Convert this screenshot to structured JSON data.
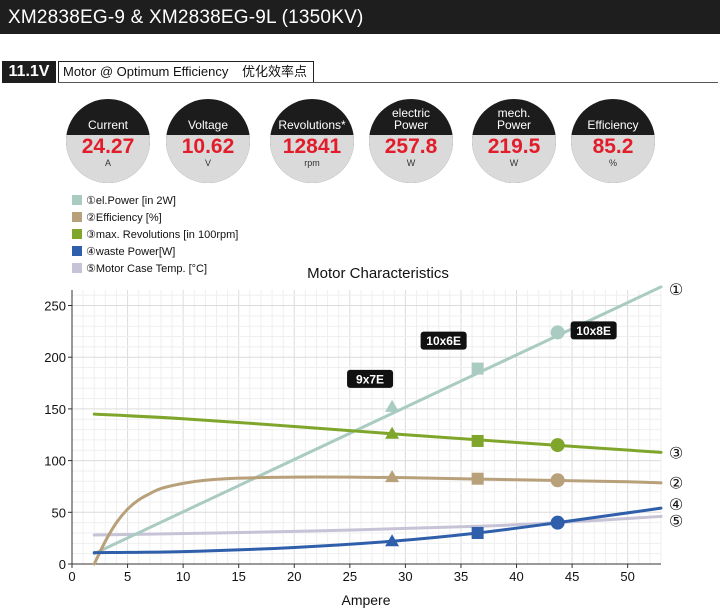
{
  "header": {
    "title": "XM2838EG-9 & XM2838EG-9L (1350KV)"
  },
  "condition": {
    "voltage": "11.1V",
    "label": "Motor @ Optimum Efficiency",
    "label_cn": "优化效率点"
  },
  "gauges": [
    {
      "label": "Current",
      "value": "24.27",
      "unit": "A"
    },
    {
      "label": "Voltage",
      "value": "10.62",
      "unit": "V"
    },
    {
      "label": "Revolutions*",
      "value": "12841",
      "unit": "rpm"
    },
    {
      "label": "electric Power",
      "value": "257.8",
      "unit": "W"
    },
    {
      "label": "mech. Power",
      "value": "219.5",
      "unit": "W"
    },
    {
      "label": "Efficiency",
      "value": "85.2",
      "unit": "%"
    }
  ],
  "legend": [
    {
      "marker": "①",
      "text": "el.Power [in 2W]",
      "color": "#a9cbc2"
    },
    {
      "marker": "②",
      "text": "Efficiency [%]",
      "color": "#b7a07a"
    },
    {
      "marker": "③",
      "text": "max. Revolutions [in 100rpm]",
      "color": "#7fa62b"
    },
    {
      "marker": "④",
      "text": "waste Power[W]",
      "color": "#2f5fab"
    },
    {
      "marker": "⑤",
      "text": "Motor Case Temp. [°C]",
      "color": "#c7c3d6"
    }
  ],
  "chart_data": {
    "type": "line",
    "title": "Motor Characteristics",
    "xlabel": "Ampere",
    "ylabel": "",
    "xlim": [
      0,
      53
    ],
    "ylim": [
      0,
      265
    ],
    "xticks": [
      0,
      5,
      10,
      15,
      20,
      25,
      30,
      35,
      40,
      45,
      50
    ],
    "yticks": [
      0,
      50,
      100,
      150,
      200,
      250
    ],
    "grid": true,
    "legend_position": "top-left",
    "series": [
      {
        "name": "el.Power [in 2W]",
        "end_label": "①",
        "color": "#a9cbc2",
        "x": [
          2,
          53
        ],
        "y": [
          10,
          268
        ]
      },
      {
        "name": "Efficiency [%]",
        "end_label": "②",
        "color": "#b7a07a",
        "x": [
          2,
          3,
          4,
          5,
          6,
          7,
          8,
          10,
          12,
          15,
          20,
          25,
          30,
          35,
          40,
          45,
          50,
          53
        ],
        "y": [
          0,
          22,
          40,
          53,
          62,
          68,
          73,
          78,
          81,
          83,
          84,
          84,
          83.5,
          82.5,
          81.5,
          80.5,
          79.5,
          78.5
        ]
      },
      {
        "name": "max. Revolutions [in 100rpm]",
        "end_label": "③",
        "color": "#7fa62b",
        "x": [
          2,
          10,
          20,
          30,
          40,
          53
        ],
        "y": [
          145,
          140.5,
          133,
          125,
          117.5,
          108
        ]
      },
      {
        "name": "waste Power[W]",
        "end_label": "④",
        "color": "#2f5fab",
        "x": [
          2,
          10,
          20,
          28.8,
          36.5,
          43.7,
          53
        ],
        "y": [
          11,
          12,
          16,
          22,
          30,
          40,
          54
        ]
      },
      {
        "name": "Motor Case Temp. [°C]",
        "end_label": "⑤",
        "color": "#c7c3d6",
        "x": [
          2,
          20,
          36.5,
          43.7,
          53
        ],
        "y": [
          28,
          31.5,
          36.5,
          40,
          46
        ]
      }
    ],
    "operating_points": [
      {
        "label": "9x7E",
        "x": 28.8,
        "marker": "triangle",
        "values": {
          "el_power": 152,
          "efficiency": 84,
          "revolutions": 126,
          "waste_power": 22,
          "case_temp": 34
        }
      },
      {
        "label": "10x6E",
        "x": 36.5,
        "marker": "square",
        "values": {
          "el_power": 189,
          "efficiency": 82.5,
          "revolutions": 119,
          "waste_power": 30,
          "case_temp": 36.5
        }
      },
      {
        "label": "10x8E",
        "x": 43.7,
        "marker": "circle",
        "values": {
          "el_power": 224,
          "efficiency": 81,
          "revolutions": 115,
          "waste_power": 40,
          "case_temp": 40
        }
      }
    ]
  }
}
